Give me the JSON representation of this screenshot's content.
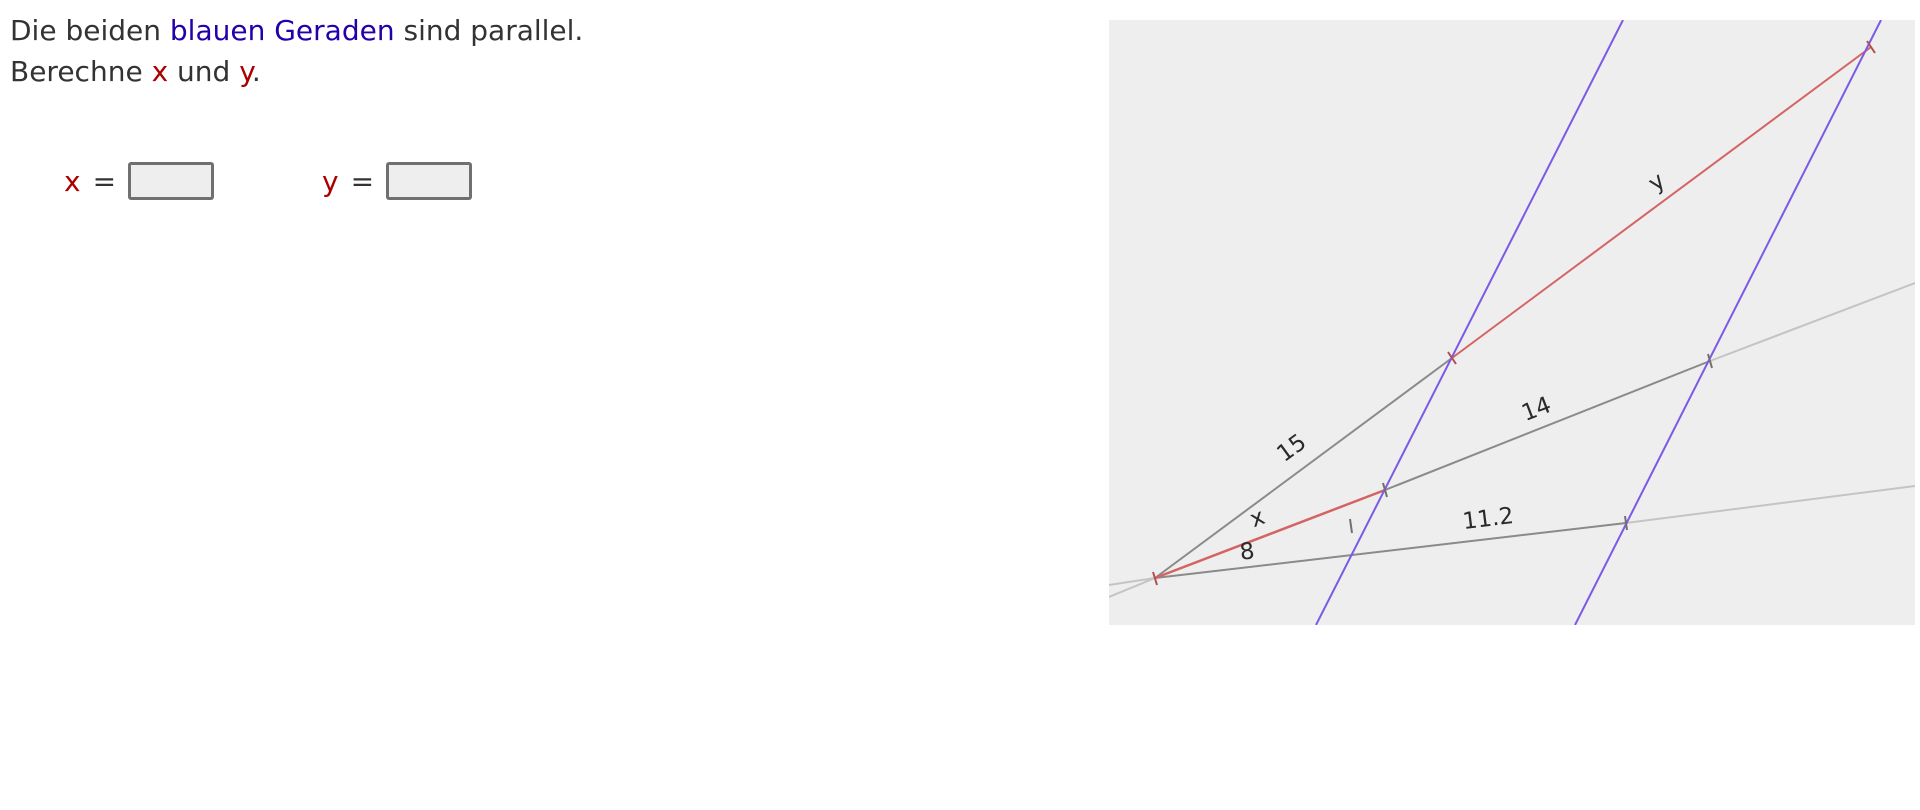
{
  "instruction": {
    "line1_prefix": "Die beiden ",
    "line1_highlight": "blauen Geraden",
    "line1_suffix": " sind parallel.",
    "line2_prefix": "Berechne ",
    "line2_var_x": "x",
    "line2_mid": " und ",
    "line2_var_y": "y",
    "line2_suffix": "."
  },
  "answers": {
    "x": {
      "label": "x",
      "equals": "=",
      "value": ""
    },
    "y": {
      "label": "y",
      "equals": "=",
      "value": ""
    }
  },
  "figure": {
    "labels": {
      "x": "x",
      "y": "y",
      "eight": "8",
      "fifteen": "15",
      "fourteen": "14",
      "eleven_two": "11.2"
    },
    "colors": {
      "background": "#eeeeee",
      "parallel_lines": "#7a5ae6",
      "unknown_segments": "#d46464",
      "given_segments": "#8a8a8a",
      "extension_lines": "#c4c4c4"
    }
  }
}
